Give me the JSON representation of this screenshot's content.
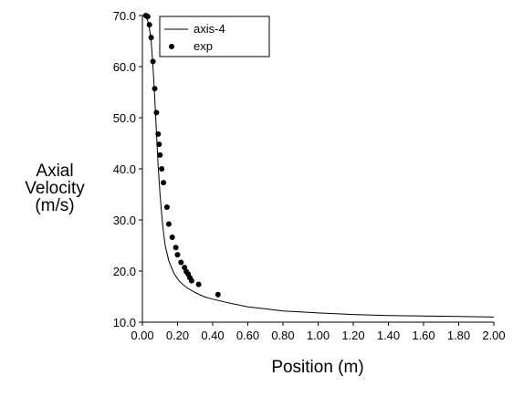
{
  "chart_data": {
    "type": "line",
    "title": "",
    "xlabel": "Position (m)",
    "ylabel_lines": [
      "Axial",
      "Velocity",
      "(m/s)"
    ],
    "xlim": [
      0,
      2.0
    ],
    "ylim": [
      10,
      70
    ],
    "x_ticks": [
      "0.00",
      "0.20",
      "0.40",
      "0.60",
      "0.80",
      "1.00",
      "1.20",
      "1.40",
      "1.60",
      "1.80",
      "2.00"
    ],
    "y_ticks": [
      "10.0",
      "20.0",
      "30.0",
      "40.0",
      "50.0",
      "60.0",
      "70.0"
    ],
    "grid": false,
    "legend_position": "top-left",
    "series": [
      {
        "name": "axis-4",
        "style": "line",
        "color": "#000000",
        "points": [
          [
            0.0,
            70.0
          ],
          [
            0.01,
            70.0
          ],
          [
            0.02,
            69.8
          ],
          [
            0.03,
            69.0
          ],
          [
            0.04,
            67.5
          ],
          [
            0.05,
            65.0
          ],
          [
            0.06,
            60.0
          ],
          [
            0.07,
            54.0
          ],
          [
            0.08,
            47.0
          ],
          [
            0.09,
            40.5
          ],
          [
            0.1,
            35.0
          ],
          [
            0.11,
            31.0
          ],
          [
            0.12,
            27.5
          ],
          [
            0.13,
            25.0
          ],
          [
            0.15,
            22.0
          ],
          [
            0.18,
            19.5
          ],
          [
            0.21,
            18.0
          ],
          [
            0.25,
            16.8
          ],
          [
            0.3,
            15.8
          ],
          [
            0.35,
            15.0
          ],
          [
            0.4,
            14.5
          ],
          [
            0.5,
            13.7
          ],
          [
            0.6,
            13.0
          ],
          [
            0.7,
            12.6
          ],
          [
            0.8,
            12.2
          ],
          [
            0.9,
            12.0
          ],
          [
            1.0,
            11.8
          ],
          [
            1.2,
            11.5
          ],
          [
            1.4,
            11.3
          ],
          [
            1.6,
            11.2
          ],
          [
            1.8,
            11.1
          ],
          [
            2.0,
            11.0
          ]
        ]
      },
      {
        "name": "exp",
        "style": "markers",
        "color": "#000000",
        "points": [
          [
            0.02,
            70.0
          ],
          [
            0.03,
            69.8
          ],
          [
            0.04,
            68.2
          ],
          [
            0.05,
            65.7
          ],
          [
            0.06,
            61.0
          ],
          [
            0.07,
            55.7
          ],
          [
            0.08,
            51.0
          ],
          [
            0.09,
            46.8
          ],
          [
            0.095,
            44.8
          ],
          [
            0.1,
            42.7
          ],
          [
            0.11,
            40.0
          ],
          [
            0.12,
            37.3
          ],
          [
            0.14,
            32.5
          ],
          [
            0.15,
            29.2
          ],
          [
            0.17,
            26.6
          ],
          [
            0.19,
            24.6
          ],
          [
            0.2,
            23.2
          ],
          [
            0.22,
            21.7
          ],
          [
            0.24,
            20.7
          ],
          [
            0.25,
            19.9
          ],
          [
            0.26,
            19.4
          ],
          [
            0.27,
            18.7
          ],
          [
            0.28,
            18.1
          ],
          [
            0.32,
            17.4
          ],
          [
            0.43,
            15.4
          ]
        ]
      }
    ]
  }
}
